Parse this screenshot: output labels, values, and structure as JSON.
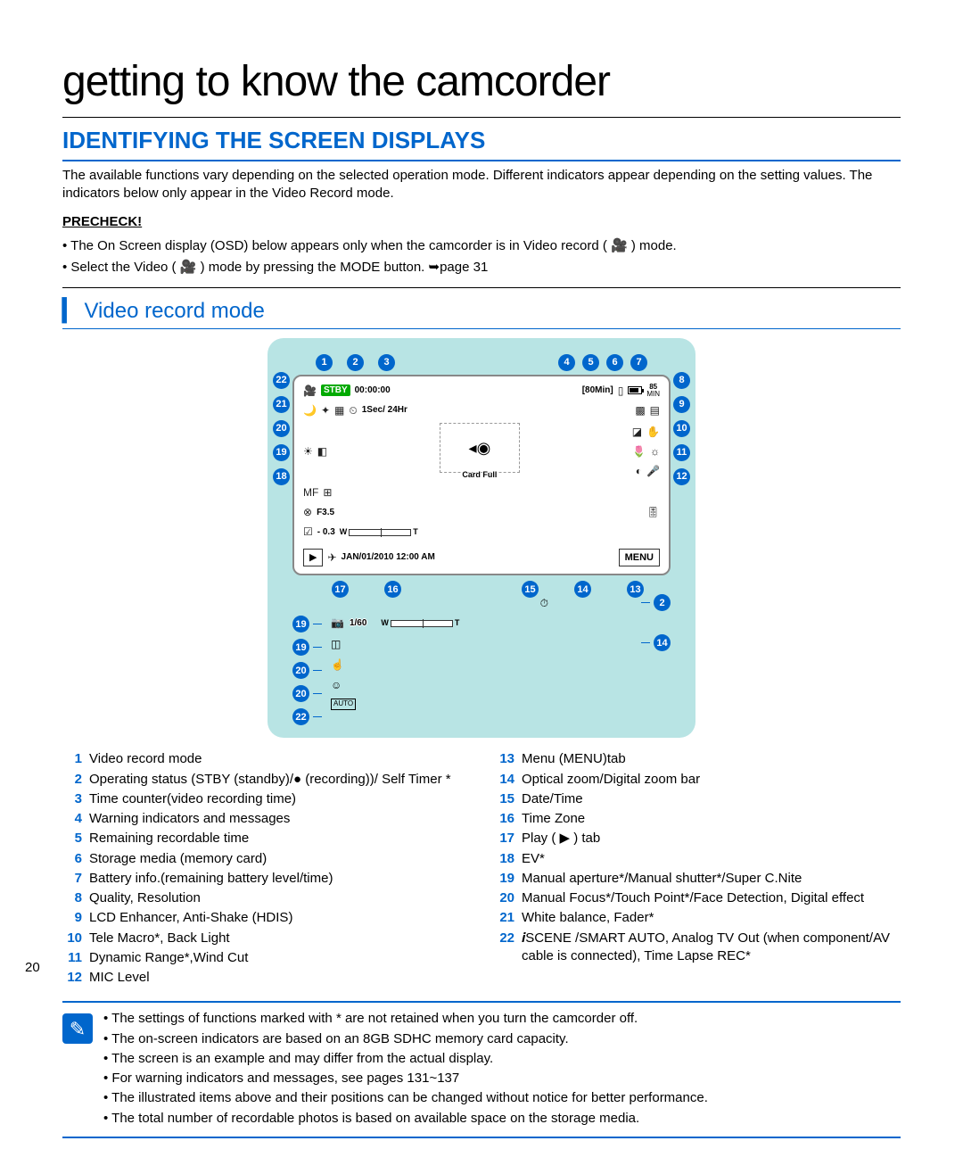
{
  "page_number": "20",
  "main_title": "getting to know the camcorder",
  "section_title": "IDENTIFYING THE SCREEN DISPLAYS",
  "intro": "The available functions vary depending on the selected operation mode. Different indicators appear depending on the setting values. The indicators below only appear in the Video Record mode.",
  "precheck_label": "PRECHECK!",
  "precheck_items": [
    "The On Screen display (OSD) below appears only when the camcorder is in Video record ( 🎥 ) mode.",
    "Select the Video ( 🎥 ) mode by pressing the MODE button. ➥page 31"
  ],
  "sub_title": "Video record mode",
  "osd": {
    "top_callouts_g1": [
      "1",
      "2",
      "3"
    ],
    "top_callouts_g2": [
      "4",
      "5",
      "6",
      "7"
    ],
    "left_callouts": [
      "22",
      "21",
      "20",
      "19",
      "18"
    ],
    "right_callouts": [
      "8",
      "9",
      "10",
      "11",
      "12"
    ],
    "bottom_left": [
      "17",
      "16"
    ],
    "bottom_right": [
      "15",
      "14",
      "13"
    ],
    "stby": "STBY",
    "time_counter": "00:00:00",
    "remain": "[80Min]",
    "batt_min": "85",
    "batt_min_label": "MIN",
    "interval": "1Sec/ 24Hr",
    "aperture": "F3.5",
    "ev": "- 0.3",
    "date": "JAN/01/2010 12:00 AM",
    "menu": "MENU",
    "card_full": "Card Full",
    "zoom_w": "W",
    "zoom_t": "T",
    "sec_right_top": "2",
    "sec_left": [
      "19",
      "19",
      "20",
      "20",
      "22"
    ],
    "sec_shutter": "1/60",
    "sec_right_bot": "14"
  },
  "colors": {
    "accent": "#0066cc",
    "diagram_bg": "#b8e4e4"
  },
  "legend_left": [
    {
      "n": "1",
      "t": "Video record mode"
    },
    {
      "n": "2",
      "t": "Operating status (STBY (standby)/● (recording))/ Self Timer *"
    },
    {
      "n": "3",
      "t": "Time counter(video recording time)"
    },
    {
      "n": "4",
      "t": "Warning indicators and messages"
    },
    {
      "n": "5",
      "t": "Remaining recordable time"
    },
    {
      "n": "6",
      "t": "Storage media (memory card)"
    },
    {
      "n": "7",
      "t": "Battery info.(remaining battery level/time)"
    },
    {
      "n": "8",
      "t": "Quality, Resolution"
    },
    {
      "n": "9",
      "t": "LCD Enhancer, Anti-Shake (HDIS)"
    },
    {
      "n": "10",
      "t": "Tele Macro*, Back Light"
    },
    {
      "n": "11",
      "t": "Dynamic Range*,Wind Cut"
    },
    {
      "n": "12",
      "t": "MIC Level"
    }
  ],
  "legend_right": [
    {
      "n": "13",
      "t": "Menu (MENU)tab"
    },
    {
      "n": "14",
      "t": "Optical zoom/Digital zoom bar"
    },
    {
      "n": "15",
      "t": "Date/Time"
    },
    {
      "n": "16",
      "t": "Time Zone"
    },
    {
      "n": "17",
      "t": "Play ( ▶ ) tab"
    },
    {
      "n": "18",
      "t": "EV*"
    },
    {
      "n": "19",
      "t": "Manual aperture*/Manual shutter*/Super C.Nite"
    },
    {
      "n": "20",
      "t": "Manual Focus*/Touch Point*/Face Detection, Digital effect"
    },
    {
      "n": "21",
      "t": "White balance, Fader*"
    },
    {
      "n": "22",
      "t": "𝒊SCENE /SMART AUTO, Analog TV Out (when component/AV cable is connected), Time Lapse REC*"
    }
  ],
  "notes": [
    "The settings of functions marked with * are not retained when you turn the camcorder off.",
    "The on-screen indicators are based on an 8GB SDHC memory card capacity.",
    "The screen is an example and may differ from the actual display.",
    "For warning indicators and messages, see pages 131~137",
    "The illustrated items above and their positions can be changed without notice for better performance.",
    "The total number of recordable photos is based on available space on the storage media."
  ]
}
